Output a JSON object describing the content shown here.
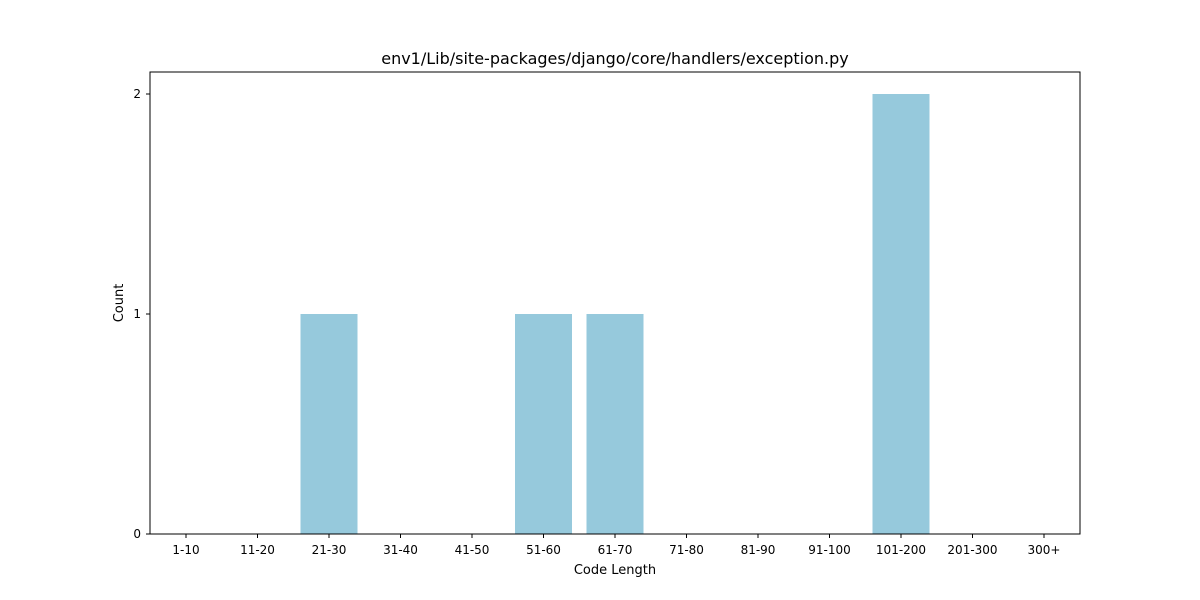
{
  "chart_data": {
    "type": "bar",
    "title": "env1/Lib/site-packages/django/core/handlers/exception.py",
    "xlabel": "Code Length",
    "ylabel": "Count",
    "categories": [
      "1-10",
      "11-20",
      "21-30",
      "31-40",
      "41-50",
      "51-60",
      "61-70",
      "71-80",
      "81-90",
      "91-100",
      "101-200",
      "201-300",
      "300+"
    ],
    "values": [
      0,
      0,
      1,
      0,
      0,
      1,
      1,
      0,
      0,
      0,
      2,
      0,
      0
    ],
    "yticks": [
      0,
      1,
      2
    ],
    "ylim": [
      0,
      2.1
    ],
    "bar_color": "#96c9dc",
    "grid": false
  }
}
